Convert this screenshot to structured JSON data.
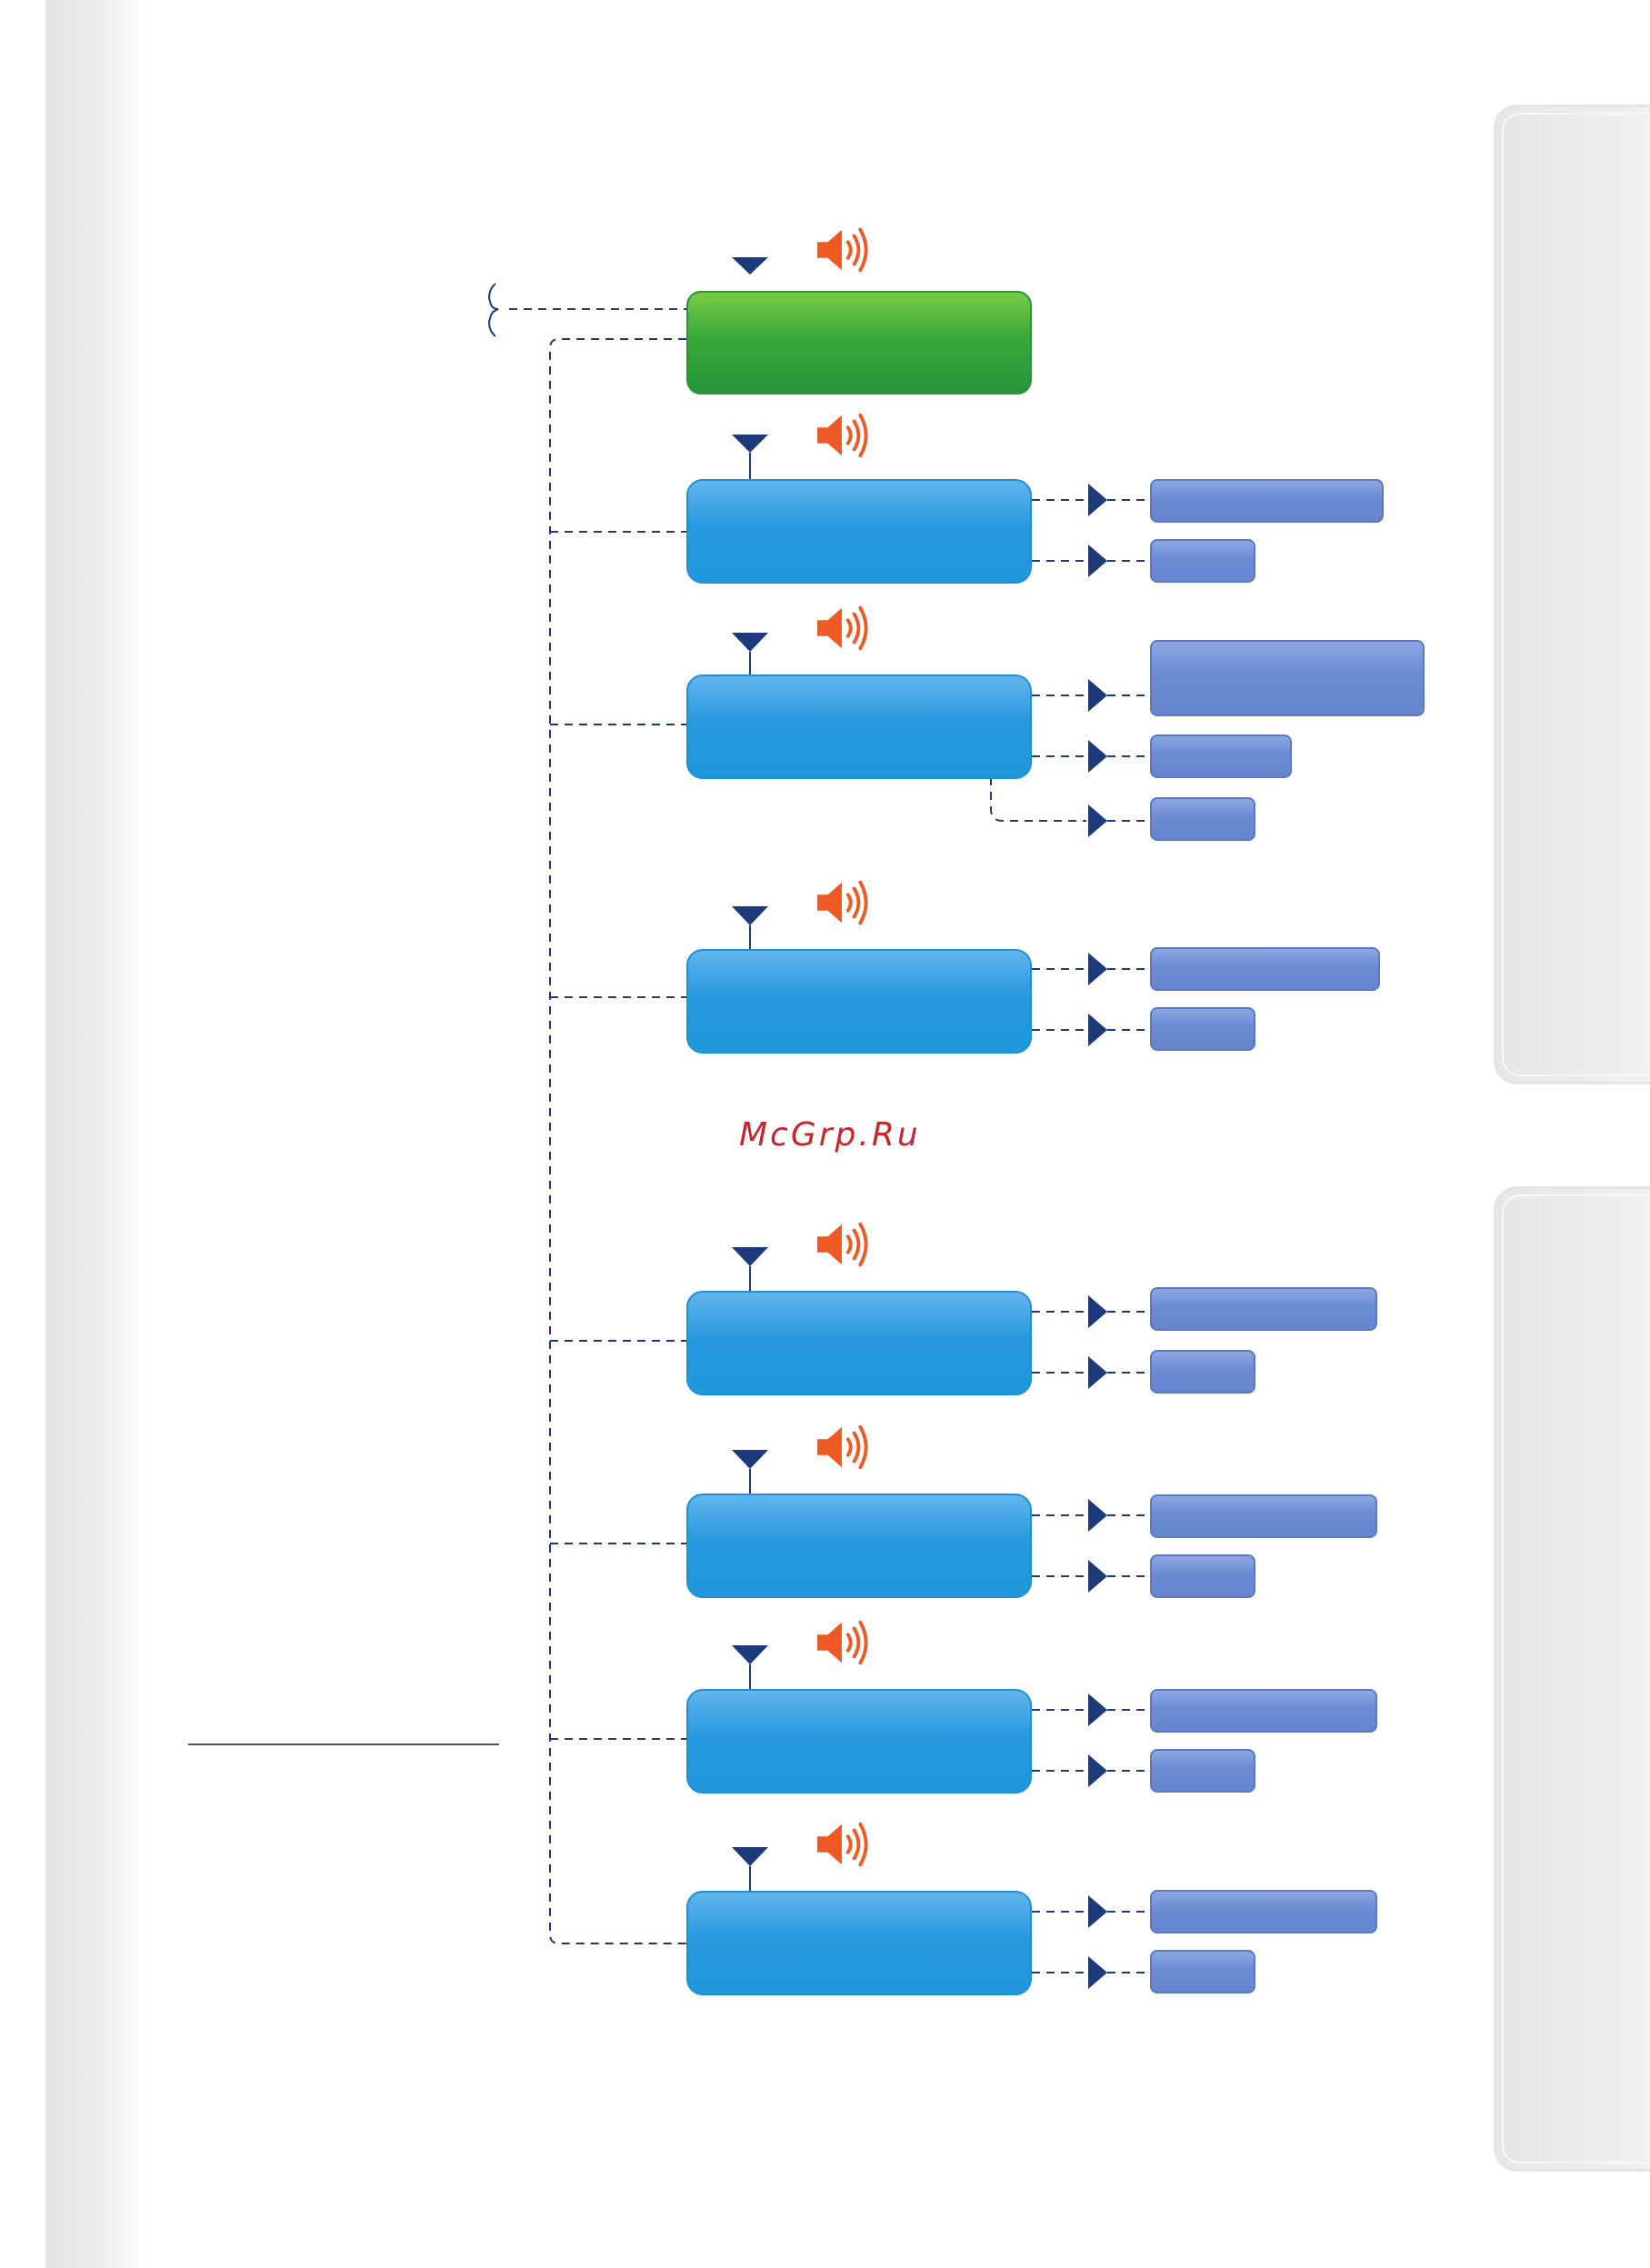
{
  "watermark": {
    "text": "McGrp.Ru"
  },
  "colors": {
    "root_node": "#2a9a3c",
    "menu_node": "#2199dc",
    "option_pill": "#6a89d1",
    "connector": "#1d3a7c",
    "speaker": "#ef5a24"
  },
  "icons": {
    "speaker": "speaker-icon",
    "down": "triangle-down-icon",
    "right": "triangle-right-icon"
  },
  "diagram": {
    "root": {
      "label": ""
    },
    "menu_nodes": [
      {
        "label": "",
        "options": [
          "",
          ""
        ]
      },
      {
        "label": "",
        "options": [
          "",
          "",
          ""
        ]
      },
      {
        "label": "",
        "options": [
          "",
          ""
        ]
      },
      {
        "label": "",
        "options": [
          "",
          ""
        ]
      },
      {
        "label": "",
        "options": [
          "",
          ""
        ]
      },
      {
        "label": "",
        "options": [
          "",
          ""
        ]
      },
      {
        "label": "",
        "options": [
          "",
          ""
        ]
      }
    ]
  }
}
